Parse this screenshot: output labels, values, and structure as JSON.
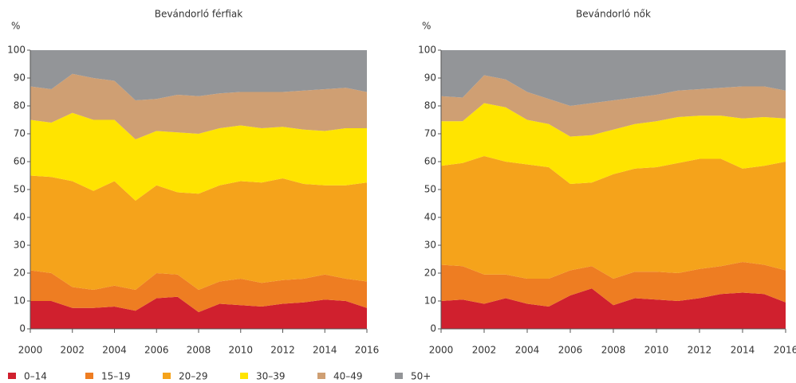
{
  "chart_data": [
    {
      "type": "area",
      "title": "Bevándorló férfiak",
      "ylabel": "%",
      "x": [
        2000,
        2001,
        2002,
        2003,
        2004,
        2005,
        2006,
        2007,
        2008,
        2009,
        2010,
        2011,
        2012,
        2013,
        2014,
        2015,
        2016
      ],
      "xlim": [
        2000,
        2016
      ],
      "xticks": [
        2000,
        2002,
        2004,
        2006,
        2008,
        2010,
        2012,
        2014,
        2016
      ],
      "ylim": [
        0,
        100
      ],
      "yticks": [
        0,
        10,
        20,
        30,
        40,
        50,
        60,
        70,
        80,
        90,
        100
      ],
      "series": [
        {
          "name": "0–14",
          "color": "#d0202e",
          "values": [
            10,
            10,
            7.5,
            7.5,
            8,
            6.5,
            11,
            11.5,
            6,
            9,
            8.5,
            8,
            9,
            9.5,
            10.5,
            10,
            7.5
          ]
        },
        {
          "name": "15–19",
          "color": "#ee7d22",
          "values": [
            11,
            10,
            7.5,
            6.5,
            7.5,
            7.5,
            9,
            8,
            8,
            8,
            9.5,
            8.5,
            8.5,
            8.5,
            9,
            8,
            9.5
          ]
        },
        {
          "name": "20–29",
          "color": "#f5a31b",
          "values": [
            34,
            34.5,
            38,
            35.5,
            37.5,
            32,
            31.5,
            29.5,
            34.5,
            34.5,
            35,
            36,
            36.5,
            34,
            32,
            33.5,
            35.5
          ]
        },
        {
          "name": "30–39",
          "color": "#ffe400",
          "values": [
            20,
            19.5,
            24.5,
            25.5,
            22,
            22,
            19.5,
            21.5,
            21.5,
            20.5,
            20,
            19.5,
            18.5,
            19.5,
            19.5,
            20.5,
            19.5
          ]
        },
        {
          "name": "40–49",
          "color": "#cf9f73",
          "values": [
            12,
            12,
            14,
            15,
            14,
            14,
            11.5,
            13.5,
            13.5,
            12.5,
            12,
            13,
            12.5,
            14,
            15,
            14.5,
            13
          ]
        },
        {
          "name": "50+",
          "color": "#939598",
          "values": [
            13,
            14,
            8.5,
            10,
            11,
            18,
            17.5,
            16,
            16.5,
            15.5,
            15,
            15,
            15,
            14.5,
            14,
            13.5,
            15
          ]
        }
      ]
    },
    {
      "type": "area",
      "title": "Bevándorló nők",
      "ylabel": "%",
      "x": [
        2000,
        2001,
        2002,
        2003,
        2004,
        2005,
        2006,
        2007,
        2008,
        2009,
        2010,
        2011,
        2012,
        2013,
        2014,
        2015,
        2016
      ],
      "xlim": [
        2000,
        2016
      ],
      "xticks": [
        2000,
        2002,
        2004,
        2006,
        2008,
        2010,
        2012,
        2014,
        2016
      ],
      "ylim": [
        0,
        100
      ],
      "yticks": [
        0,
        10,
        20,
        30,
        40,
        50,
        60,
        70,
        80,
        90,
        100
      ],
      "series": [
        {
          "name": "0–14",
          "color": "#d0202e",
          "values": [
            10,
            10.5,
            9,
            11,
            9,
            8,
            12,
            14.5,
            8.5,
            11,
            10.5,
            10,
            11,
            12.5,
            13,
            12.5,
            9.5
          ]
        },
        {
          "name": "15–19",
          "color": "#ee7d22",
          "values": [
            13,
            12,
            10.5,
            8.5,
            9,
            10,
            9,
            8,
            9.5,
            9.5,
            10,
            10,
            10.5,
            10,
            11,
            10.5,
            11.5
          ]
        },
        {
          "name": "20–29",
          "color": "#f5a31b",
          "values": [
            35.5,
            37,
            42.5,
            40.5,
            41,
            40,
            31,
            30,
            37.5,
            37,
            37.5,
            39.5,
            39.5,
            38.5,
            33.5,
            35.5,
            39
          ]
        },
        {
          "name": "30–39",
          "color": "#ffe400",
          "values": [
            16,
            15,
            19,
            19.5,
            16,
            15.5,
            17,
            17,
            16,
            16,
            16.5,
            16.5,
            15.5,
            15.5,
            18,
            17.5,
            15.5
          ]
        },
        {
          "name": "40–49",
          "color": "#cf9f73",
          "values": [
            9,
            8.5,
            10,
            10,
            10,
            9,
            11,
            11.5,
            10.5,
            9.5,
            9.5,
            9.5,
            9.5,
            10,
            11.5,
            11,
            10
          ]
        },
        {
          "name": "50+",
          "color": "#939598",
          "values": [
            16.5,
            17,
            9,
            10.5,
            15,
            17.5,
            20,
            19,
            18,
            17,
            16,
            14.5,
            14,
            13.5,
            13,
            13,
            14.5
          ]
        }
      ]
    }
  ]
}
